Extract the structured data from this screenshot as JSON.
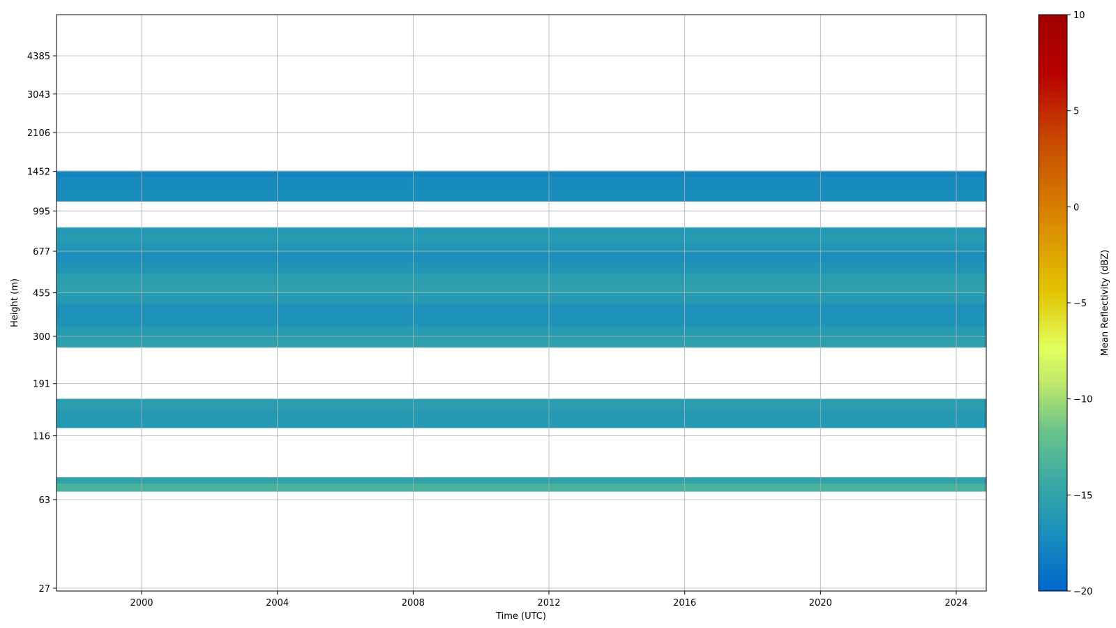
{
  "chart_data": {
    "type": "heatmap",
    "title": "",
    "xlabel": "Time (UTC)",
    "ylabel": "Height (m)",
    "x_ticks": [
      "2000",
      "2004",
      "2008",
      "2012",
      "2016",
      "2020",
      "2024"
    ],
    "y_ticks": [
      "27",
      "63",
      "116",
      "191",
      "300",
      "455",
      "677",
      "995",
      "1452",
      "2106",
      "3043",
      "4385"
    ],
    "grid": true,
    "colorbar": {
      "label": "Mean Reflectivity (dBZ)",
      "range": [
        -20,
        10
      ],
      "ticks": [
        "−20",
        "−15",
        "−10",
        "−5",
        "0",
        "5",
        "10"
      ],
      "colors": [
        "#0066cc",
        "#1a8fbc",
        "#35a6a6",
        "#6cc48a",
        "#bfe76a",
        "#e3ff5e",
        "#e2c400",
        "#d98a00",
        "#c84a00",
        "#b80000",
        "#a00000"
      ]
    },
    "bands": [
      {
        "bottom": 1090,
        "top": 1460,
        "value": -17.3
      },
      {
        "bottom": 270,
        "top": 850,
        "value": -16.0
      },
      {
        "bottom": 125,
        "top": 165,
        "value": -15.8
      },
      {
        "bottom": 68,
        "top": 78,
        "value": -14.5
      }
    ],
    "band_detail": [
      {
        "height": 1455,
        "value": -17.8
      },
      {
        "height": 1300,
        "value": -17.3
      },
      {
        "height": 1150,
        "value": -17.1
      },
      {
        "height": 820,
        "value": -16.0
      },
      {
        "height": 760,
        "value": -15.8
      },
      {
        "height": 700,
        "value": -16.4
      },
      {
        "height": 640,
        "value": -17.0
      },
      {
        "height": 580,
        "value": -16.5
      },
      {
        "height": 520,
        "value": -15.5
      },
      {
        "height": 470,
        "value": -15.2
      },
      {
        "height": 430,
        "value": -15.9
      },
      {
        "height": 390,
        "value": -16.8
      },
      {
        "height": 350,
        "value": -16.6
      },
      {
        "height": 310,
        "value": -15.8
      },
      {
        "height": 280,
        "value": -15.2
      },
      {
        "height": 155,
        "value": -15.5
      },
      {
        "height": 140,
        "value": -16.0
      },
      {
        "height": 130,
        "value": -15.9
      },
      {
        "height": 76,
        "value": -15.0
      },
      {
        "height": 71,
        "value": -13.5
      }
    ]
  }
}
